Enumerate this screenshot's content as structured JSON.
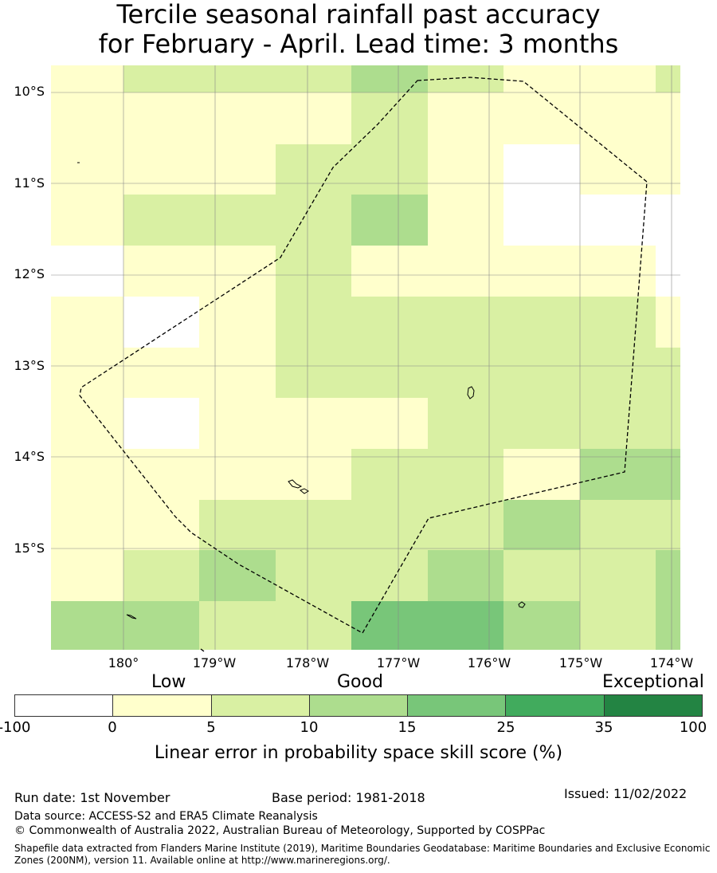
{
  "title": {
    "line1": "Tercile seasonal rainfall past accuracy",
    "line2": "for February - April. Lead time: 3 months"
  },
  "map": {
    "lat_labels": [
      "10°S",
      "11°S",
      "12°S",
      "13°S",
      "14°S",
      "15°S"
    ],
    "lon_labels": [
      "180°",
      "179°W",
      "178°W",
      "177°W",
      "176°W",
      "175°W",
      "174°W"
    ],
    "grid_categories": [
      [
        1,
        2,
        2,
        2,
        3,
        2,
        1,
        1,
        2
      ],
      [
        1,
        1,
        1,
        1,
        2,
        1,
        1,
        1,
        1
      ],
      [
        1,
        1,
        1,
        2,
        2,
        1,
        0,
        1,
        1
      ],
      [
        1,
        2,
        2,
        2,
        3,
        1,
        0,
        0,
        0
      ],
      [
        0,
        1,
        1,
        2,
        1,
        1,
        1,
        1,
        0
      ],
      [
        1,
        0,
        1,
        2,
        2,
        2,
        2,
        2,
        1
      ],
      [
        1,
        1,
        1,
        2,
        2,
        2,
        2,
        2,
        2
      ],
      [
        1,
        0,
        1,
        1,
        1,
        2,
        2,
        2,
        2
      ],
      [
        1,
        1,
        1,
        1,
        2,
        2,
        1,
        3,
        3
      ],
      [
        1,
        1,
        2,
        2,
        2,
        2,
        3,
        2,
        2
      ],
      [
        1,
        2,
        3,
        2,
        2,
        3,
        2,
        2,
        3
      ],
      [
        3,
        3,
        2,
        2,
        4,
        4,
        3,
        2,
        3
      ]
    ],
    "boundary_style": "dashed",
    "colors": {
      "cat0": "#ffffff",
      "cat1": "#ffffcc",
      "cat2": "#d9f0a3",
      "cat3": "#addd8e",
      "cat4": "#78c679",
      "cat5": "#41ab5d",
      "cat6": "#238443"
    }
  },
  "legend": {
    "categories": [
      "Low",
      "Good",
      "Exceptional"
    ],
    "ticks": [
      "-100",
      "0",
      "5",
      "10",
      "15",
      "25",
      "35",
      "100"
    ],
    "colors": [
      "#ffffff",
      "#ffffcc",
      "#d9f0a3",
      "#addd8e",
      "#78c679",
      "#41ab5d",
      "#238443"
    ],
    "axis_title": "Linear error in probability space skill score (%)"
  },
  "footer": {
    "run_date": "Run date: 1st November",
    "base_period": "Base period: 1981-2018",
    "issued": "Issued: 11/02/2022",
    "data_source": "Data source: ACCESS-S2 and ERA5 Climate Reanalysis",
    "copyright": "© Commonwealth of Australia 2022, Australian Bureau of Meteorology, Supported by COSPPac",
    "shapefile": "Shapefile data extracted from Flanders Marine Institute (2019), Maritime Boundaries Geodatabase: Maritime Boundaries and Exclusive Economic Zones (200NM), version 11. Available online at http://www.marineregions.org/."
  }
}
